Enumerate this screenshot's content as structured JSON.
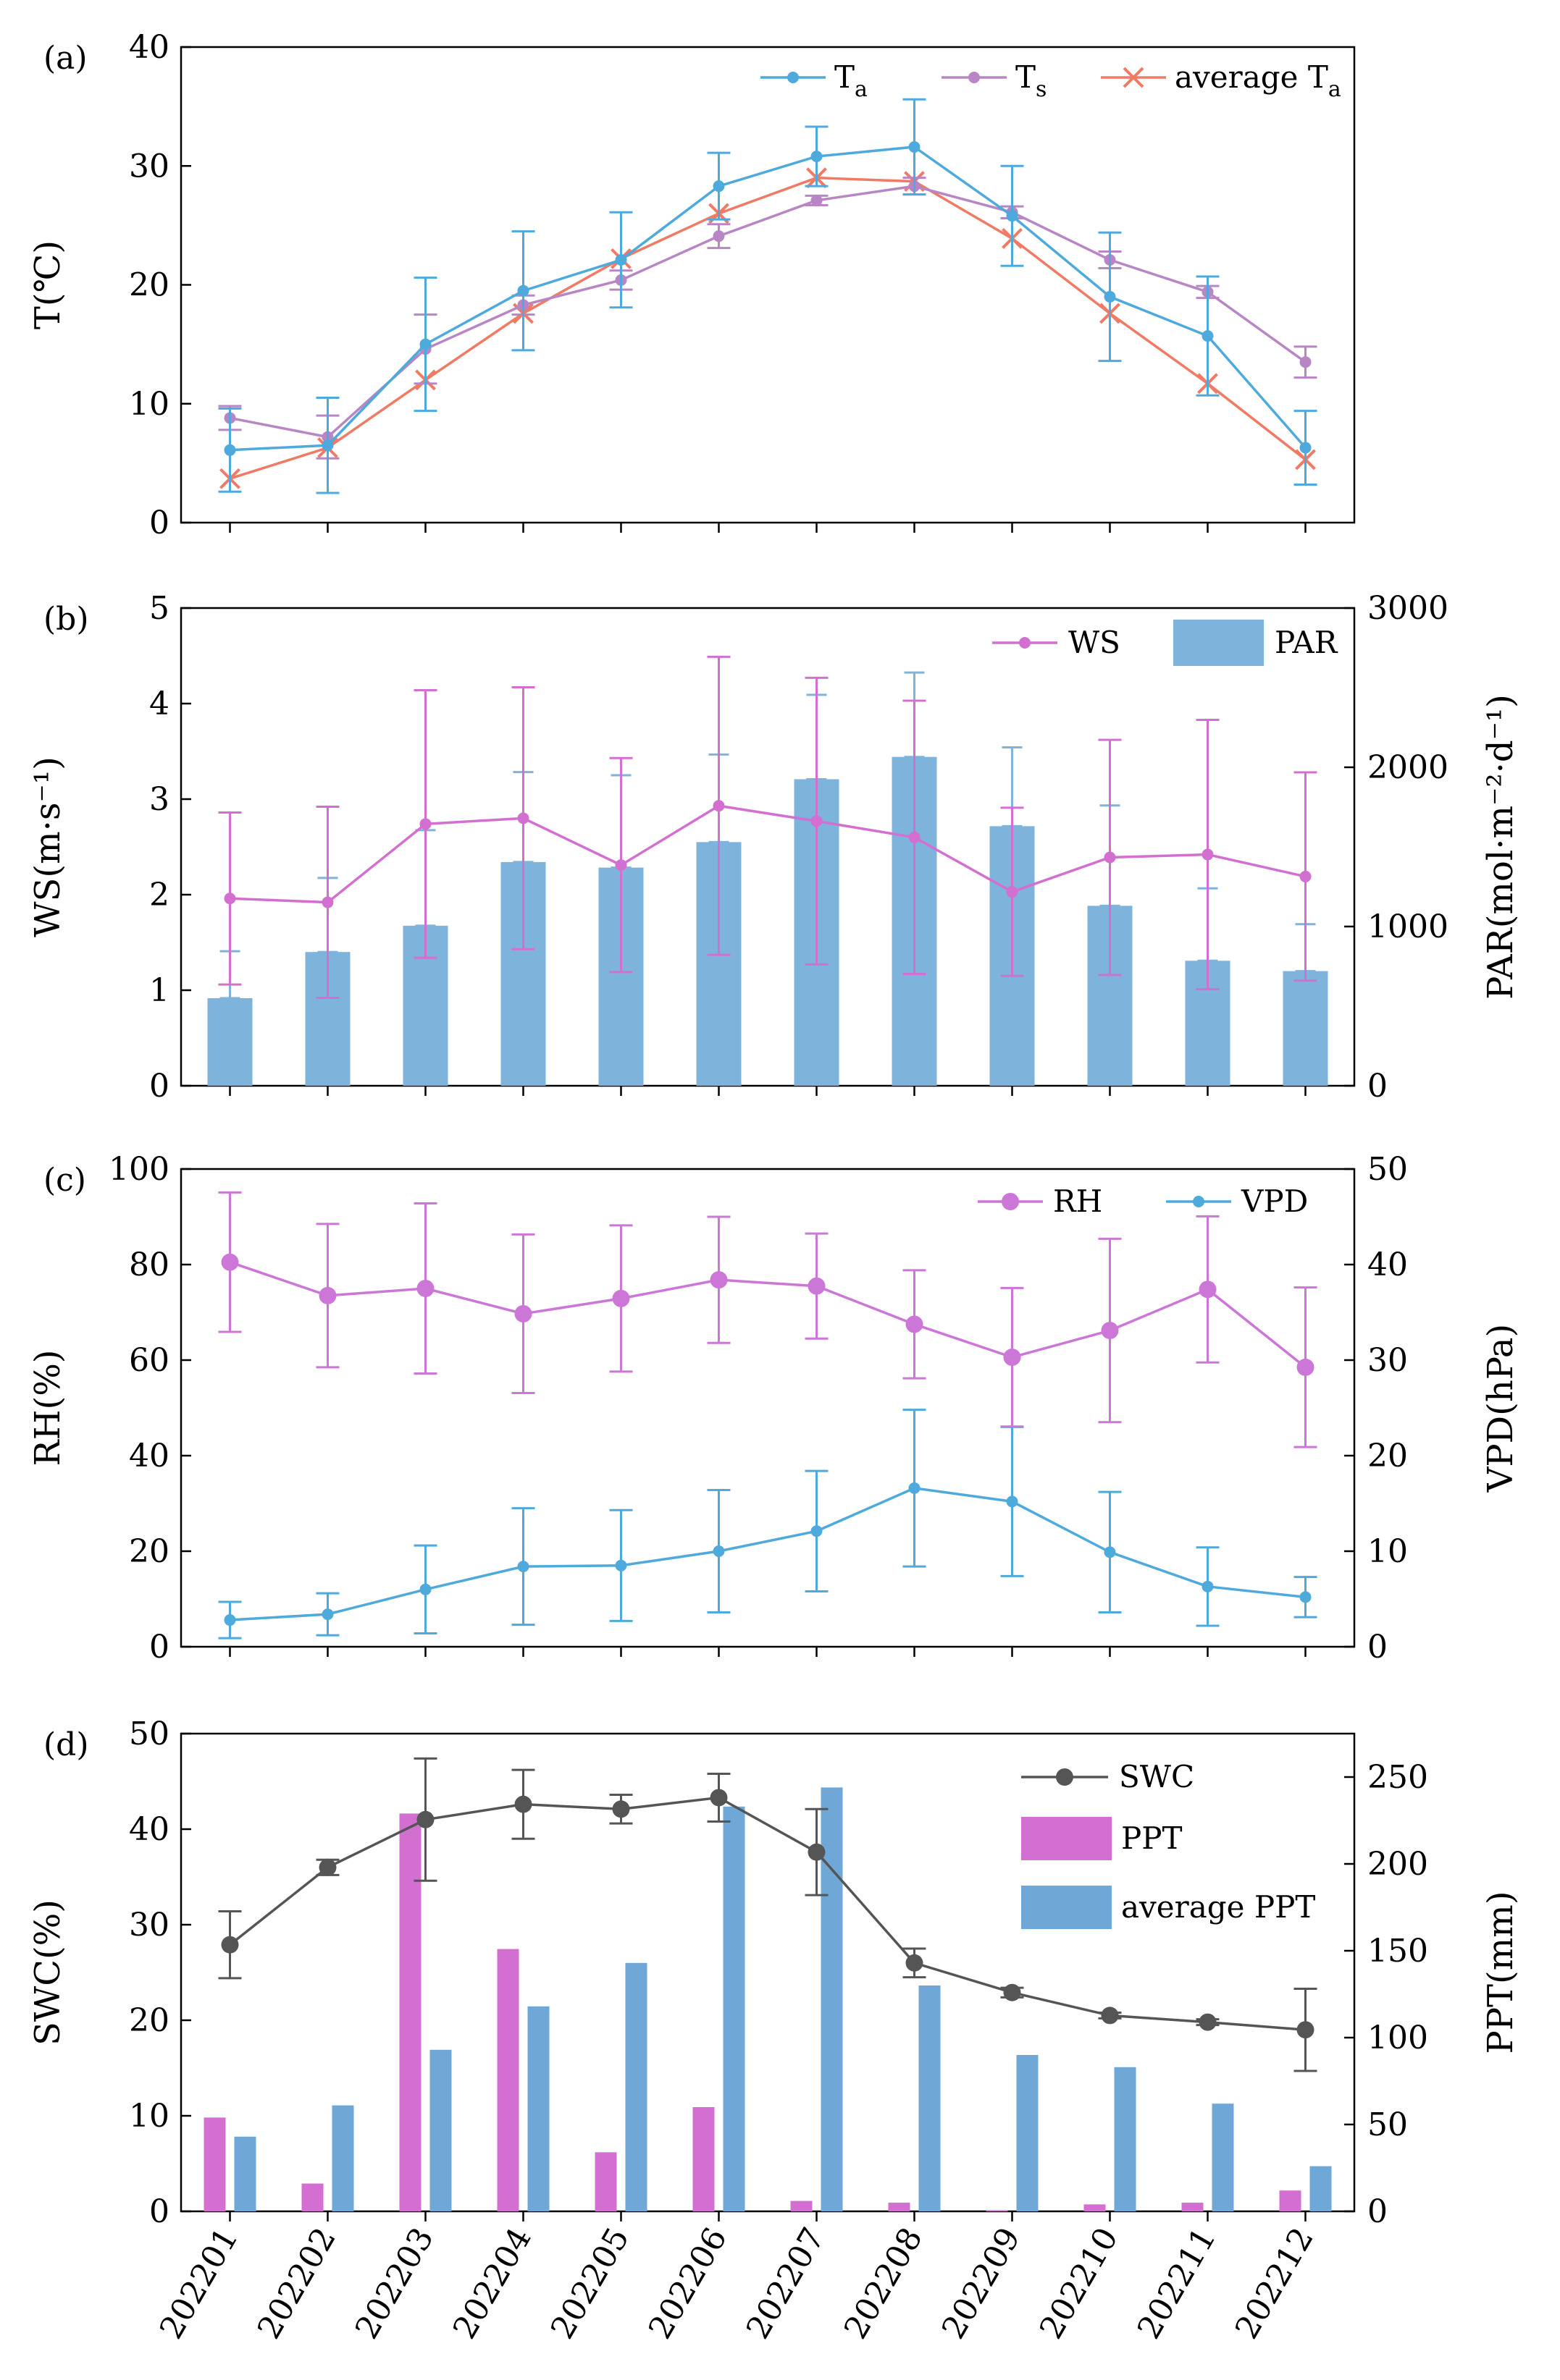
{
  "months": [
    "202201",
    "202202",
    "202203",
    "202204",
    "202205",
    "202206",
    "202207",
    "202208",
    "202209",
    "202210",
    "202211",
    "202212"
  ],
  "colors": {
    "blue": "#4ea9dd",
    "purple": "#b886c5",
    "salmon": "#f07a64",
    "magenta": "#d36fd0",
    "violet": "#cc76d7",
    "bar_blue": "#7eb3dc",
    "steel": "#6fa7d6",
    "gray": "#555555"
  },
  "chart_data": [
    {
      "id": "a",
      "panel_label": "(a)",
      "type": "line",
      "ylabel": "T(℃)",
      "ylim": [
        0,
        40
      ],
      "yticks": [
        0,
        10,
        20,
        30,
        40
      ],
      "series": [
        {
          "name": "T",
          "sub": "a",
          "color_key": "blue",
          "marker": "circle",
          "values": [
            6.1,
            6.5,
            15.0,
            19.5,
            22.1,
            28.3,
            30.8,
            31.6,
            25.8,
            19.0,
            15.7,
            6.3
          ],
          "err": [
            3.5,
            4.0,
            5.6,
            5.0,
            4.0,
            2.8,
            2.5,
            4.0,
            4.2,
            5.4,
            5.0,
            3.1
          ]
        },
        {
          "name": "T",
          "sub": "s",
          "color_key": "purple",
          "marker": "circle",
          "values": [
            8.8,
            7.2,
            14.6,
            18.3,
            20.4,
            24.1,
            27.1,
            28.3,
            26.1,
            22.1,
            19.4,
            13.5
          ],
          "err": [
            1.0,
            1.8,
            2.9,
            0.8,
            0.8,
            1.0,
            0.4,
            0.7,
            0.5,
            0.7,
            0.5,
            1.3
          ]
        },
        {
          "name": "average T",
          "sub": "a",
          "color_key": "salmon",
          "marker": "x",
          "values": [
            3.7,
            6.3,
            12.0,
            17.6,
            22.2,
            26.0,
            29.0,
            28.7,
            23.9,
            17.6,
            11.7,
            5.3
          ],
          "err": null
        }
      ]
    },
    {
      "id": "b",
      "panel_label": "(b)",
      "type": "bar+line",
      "ylabel": "WS(m·s⁻¹)",
      "ylim": [
        0,
        5
      ],
      "yticks": [
        0,
        1,
        2,
        3,
        4,
        5
      ],
      "y2label": "PAR(mol·m⁻²·d⁻¹)",
      "y2lim": [
        0,
        3000
      ],
      "y2ticks": [
        0,
        1000,
        2000,
        3000
      ],
      "bars": {
        "name": "PAR",
        "color_key": "bar_blue",
        "values": [
          550,
          840,
          1005,
          1405,
          1370,
          1530,
          1925,
          2065,
          1630,
          1130,
          785,
          720
        ],
        "err": [
          295,
          465,
          600,
          565,
          580,
          550,
          530,
          530,
          495,
          630,
          455,
          295
        ]
      },
      "line": {
        "name": "WS",
        "color_key": "magenta",
        "values": [
          1.96,
          1.92,
          2.74,
          2.8,
          2.31,
          2.93,
          2.77,
          2.6,
          2.03,
          2.39,
          2.42,
          2.19
        ],
        "err": [
          0.9,
          1.0,
          1.4,
          1.37,
          1.12,
          1.56,
          1.5,
          1.43,
          0.88,
          1.23,
          1.41,
          1.09
        ]
      }
    },
    {
      "id": "c",
      "panel_label": "(c)",
      "type": "line",
      "ylabel": "RH(%)",
      "ylim": [
        0,
        100
      ],
      "yticks": [
        0,
        20,
        40,
        60,
        80,
        100
      ],
      "y2label": "VPD(hPa)",
      "y2lim": [
        0,
        50
      ],
      "y2ticks": [
        0,
        10,
        20,
        30,
        40,
        50
      ],
      "series": [
        {
          "name": "RH",
          "axis": "left",
          "color_key": "violet",
          "marker": "circle-large",
          "values": [
            80.5,
            73.5,
            75.0,
            69.7,
            72.9,
            76.8,
            75.5,
            67.5,
            60.6,
            66.2,
            74.8,
            58.5
          ],
          "err": [
            14.6,
            15.0,
            17.8,
            16.6,
            15.3,
            13.2,
            11.0,
            11.3,
            14.5,
            19.2,
            15.3,
            16.7
          ]
        },
        {
          "name": "VPD",
          "axis": "right",
          "color_key": "blue",
          "marker": "circle",
          "values": [
            2.8,
            3.4,
            6.0,
            8.4,
            8.5,
            10.0,
            12.1,
            16.6,
            15.2,
            9.9,
            6.3,
            5.2
          ],
          "err": [
            1.9,
            2.2,
            4.6,
            6.1,
            5.8,
            6.4,
            6.3,
            8.2,
            7.8,
            6.3,
            4.1,
            2.1
          ]
        }
      ]
    },
    {
      "id": "d",
      "panel_label": "(d)",
      "type": "bar+line",
      "ylabel": "SWC(%)",
      "ylim": [
        0,
        50
      ],
      "yticks": [
        0,
        10,
        20,
        30,
        40,
        50
      ],
      "y2label": "PPT(mm)",
      "y2lim": [
        0,
        275
      ],
      "y2ticks": [
        0,
        50,
        100,
        150,
        200,
        250
      ],
      "line": {
        "name": "SWC",
        "color_key": "gray",
        "values": [
          27.9,
          36.0,
          41.0,
          42.6,
          42.1,
          43.3,
          37.6,
          26.0,
          22.9,
          20.5,
          19.8,
          19.0
        ],
        "err": [
          3.5,
          0.8,
          6.4,
          3.6,
          1.5,
          2.5,
          4.5,
          1.5,
          0.5,
          0.3,
          0.3,
          4.3
        ]
      },
      "bars": [
        {
          "name": "PPT",
          "color_key": "magenta",
          "values": [
            54,
            16,
            229,
            151,
            34,
            60,
            6,
            5,
            0.5,
            4,
            5,
            12
          ]
        },
        {
          "name": "average PPT",
          "color_key": "steel",
          "values": [
            43,
            61,
            93,
            118,
            143,
            233,
            244,
            130,
            90,
            83,
            62,
            26
          ]
        }
      ]
    }
  ]
}
